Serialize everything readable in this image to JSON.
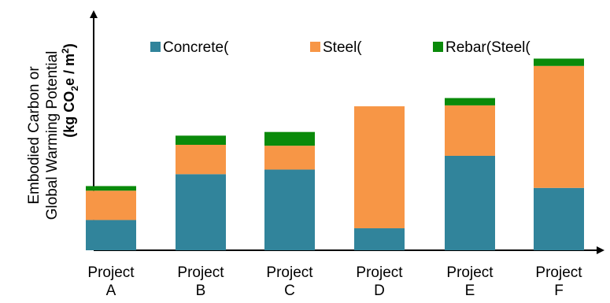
{
  "chart_data": {
    "type": "bar",
    "stacked": true,
    "title": "",
    "xlabel": "",
    "ylabel_line1": "Embodied Carbon or",
    "ylabel_line2": "Global Warming Potential",
    "ylabel_line3_main": "(kg CO",
    "ylabel_line3_sub": "2",
    "ylabel_line3_mid": "e / m",
    "ylabel_line3_sup": "2",
    "ylabel_line3_end": ")",
    "y_ticks_shown": false,
    "grid": false,
    "legend_position": "top",
    "categories": [
      [
        "Project",
        "A"
      ],
      [
        "Project",
        "B"
      ],
      [
        "Project",
        "C"
      ],
      [
        "Project",
        "D"
      ],
      [
        "Project",
        "E"
      ],
      [
        "Project",
        "F"
      ]
    ],
    "ylim": [
      0,
      230
    ],
    "series": [
      {
        "name": "Concrete(",
        "color": "#31849b",
        "values": [
          33,
          83,
          88,
          24,
          103,
          68
        ]
      },
      {
        "name": "Steel(",
        "color": "#f79646",
        "values": [
          32,
          32,
          26,
          133,
          55,
          133
        ]
      },
      {
        "name": "Rebar(Steel(",
        "color": "#0a8a0a",
        "values": [
          5,
          10,
          15,
          0,
          8,
          8
        ]
      }
    ]
  }
}
